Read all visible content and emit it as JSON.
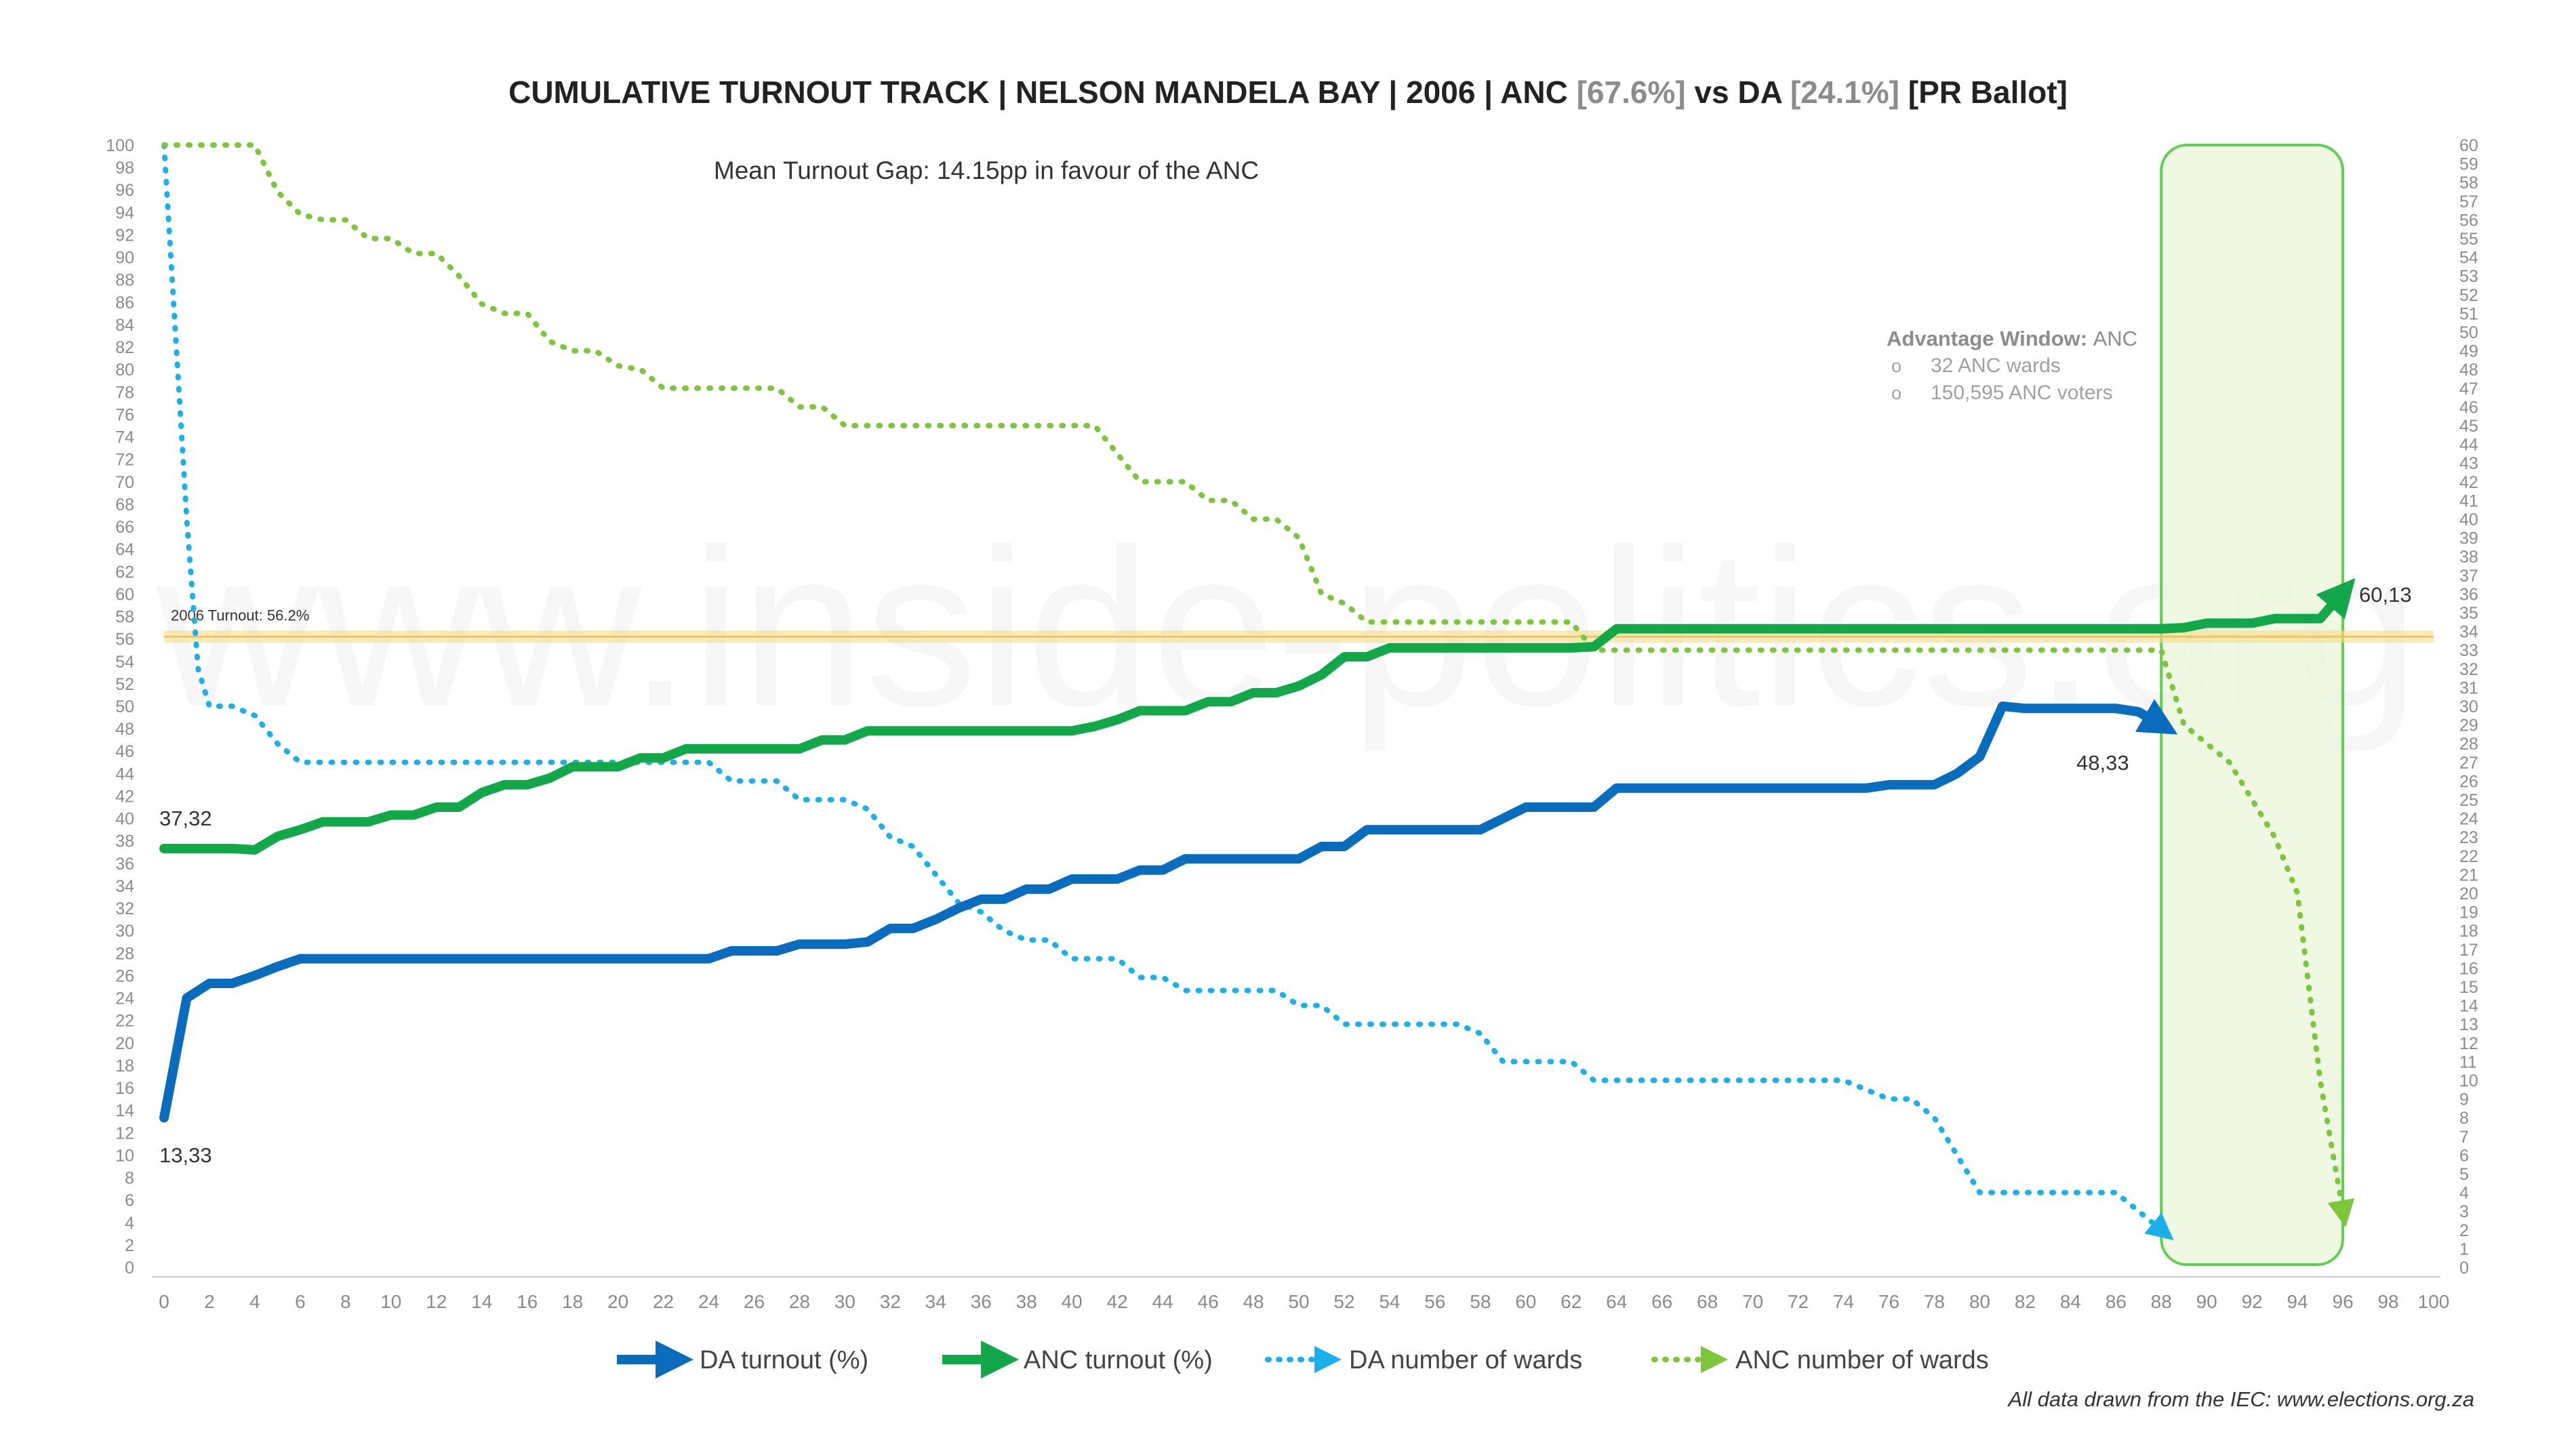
{
  "chart_data": {
    "type": "line",
    "title_parts": [
      {
        "text": "CUMULATIVE TURNOUT TRACK | NELSON MANDELA BAY | 2006 | ANC ",
        "color": "#222222"
      },
      {
        "text": "[67.6%]",
        "color": "#8c8c8c"
      },
      {
        "text": " vs DA ",
        "color": "#222222"
      },
      {
        "text": "[24.1%]",
        "color": "#8c8c8c"
      },
      {
        "text": " [PR Ballot]",
        "color": "#222222"
      }
    ],
    "subtitle": "Mean Turnout Gap: 14.15pp in favour of the ANC",
    "footer": "All data drawn from the IEC: www.elections.org.za",
    "watermark": "www.inside-politics.org",
    "xlim": [
      0,
      100
    ],
    "ylim_left": [
      0,
      100
    ],
    "ylim_right": [
      0,
      60
    ],
    "x_ticks": [
      0,
      2,
      4,
      6,
      8,
      10,
      12,
      14,
      16,
      18,
      20,
      22,
      24,
      26,
      28,
      30,
      32,
      34,
      36,
      38,
      40,
      42,
      44,
      46,
      48,
      50,
      52,
      54,
      56,
      58,
      60,
      62,
      64,
      66,
      68,
      70,
      72,
      74,
      76,
      78,
      80,
      82,
      84,
      86,
      88,
      90,
      92,
      94,
      96,
      98,
      100
    ],
    "y_left_ticks": [
      0,
      2,
      4,
      6,
      8,
      10,
      12,
      14,
      16,
      18,
      20,
      22,
      24,
      26,
      28,
      30,
      32,
      34,
      36,
      38,
      40,
      42,
      44,
      46,
      48,
      50,
      52,
      54,
      56,
      58,
      60,
      62,
      64,
      66,
      68,
      70,
      72,
      74,
      76,
      78,
      80,
      82,
      84,
      86,
      88,
      90,
      92,
      94,
      96,
      98,
      100
    ],
    "y_right_ticks": [
      0,
      1,
      2,
      3,
      4,
      5,
      6,
      7,
      8,
      9,
      10,
      11,
      12,
      13,
      14,
      15,
      16,
      17,
      18,
      19,
      20,
      21,
      22,
      23,
      24,
      25,
      26,
      27,
      28,
      29,
      30,
      31,
      32,
      33,
      34,
      35,
      36,
      37,
      38,
      39,
      40,
      41,
      42,
      43,
      44,
      45,
      46,
      47,
      48,
      49,
      50,
      51,
      52,
      53,
      54,
      55,
      56,
      57,
      58,
      59,
      60
    ],
    "reference_line": {
      "value": 56.2,
      "label": "2006 Turnout: 56.2%",
      "color": "#f5dc8c"
    },
    "advantage_window": {
      "x_start": 88,
      "x_end": 96,
      "title_label": "Advantage Window: ",
      "title_value": "ANC",
      "items": [
        "32 ANC wards",
        "150,595 ANC voters"
      ],
      "bullet": "o"
    },
    "series": [
      {
        "name": "DA turnout (%)",
        "axis": "left",
        "style": "solid",
        "color": "#0a6cbd",
        "points": [
          [
            0,
            13.33
          ],
          [
            1,
            24
          ],
          [
            2,
            25.3
          ],
          [
            3,
            25.3
          ],
          [
            4,
            26
          ],
          [
            5,
            26.8
          ],
          [
            6,
            27.5
          ],
          [
            23,
            27.5
          ],
          [
            24,
            27.5
          ],
          [
            25,
            28.2
          ],
          [
            27,
            28.2
          ],
          [
            28,
            28.8
          ],
          [
            30,
            28.8
          ],
          [
            31,
            29
          ],
          [
            32,
            30.2
          ],
          [
            33,
            30.2
          ],
          [
            34,
            31
          ],
          [
            35,
            32
          ],
          [
            36,
            32.8
          ],
          [
            37,
            32.8
          ],
          [
            38,
            33.7
          ],
          [
            39,
            33.7
          ],
          [
            40,
            34.6
          ],
          [
            42,
            34.6
          ],
          [
            43,
            35.4
          ],
          [
            44,
            35.4
          ],
          [
            45,
            36.4
          ],
          [
            50,
            36.4
          ],
          [
            51,
            37.5
          ],
          [
            52,
            37.5
          ],
          [
            53,
            39
          ],
          [
            58,
            39
          ],
          [
            59,
            40
          ],
          [
            60,
            41
          ],
          [
            62,
            41
          ],
          [
            63,
            41
          ],
          [
            64,
            42.7
          ],
          [
            75,
            42.7
          ],
          [
            76,
            43
          ],
          [
            78,
            43
          ],
          [
            79,
            44
          ],
          [
            80,
            45.5
          ],
          [
            81,
            50
          ],
          [
            82,
            49.8
          ],
          [
            86,
            49.8
          ],
          [
            87,
            49.5
          ],
          [
            88,
            48.33
          ]
        ],
        "end_label": "48,33",
        "start_label": "13,33"
      },
      {
        "name": "ANC turnout (%)",
        "axis": "left",
        "style": "solid",
        "color": "#12a84a",
        "points": [
          [
            0,
            37.32
          ],
          [
            3,
            37.32
          ],
          [
            4,
            37.2
          ],
          [
            5,
            38.4
          ],
          [
            6,
            39
          ],
          [
            7,
            39.7
          ],
          [
            9,
            39.7
          ],
          [
            10,
            40.3
          ],
          [
            11,
            40.3
          ],
          [
            12,
            41
          ],
          [
            13,
            41
          ],
          [
            14,
            42.3
          ],
          [
            15,
            43
          ],
          [
            16,
            43
          ],
          [
            17,
            43.6
          ],
          [
            18,
            44.6
          ],
          [
            20,
            44.6
          ],
          [
            21,
            45.4
          ],
          [
            22,
            45.4
          ],
          [
            23,
            46.2
          ],
          [
            28,
            46.2
          ],
          [
            29,
            47
          ],
          [
            30,
            47
          ],
          [
            31,
            47.8
          ],
          [
            40,
            47.8
          ],
          [
            41,
            48.2
          ],
          [
            42,
            48.8
          ],
          [
            43,
            49.6
          ],
          [
            45,
            49.6
          ],
          [
            46,
            50.4
          ],
          [
            47,
            50.4
          ],
          [
            48,
            51.2
          ],
          [
            49,
            51.2
          ],
          [
            50,
            51.8
          ],
          [
            51,
            52.8
          ],
          [
            52,
            54.4
          ],
          [
            53,
            54.4
          ],
          [
            54,
            55.2
          ],
          [
            62,
            55.2
          ],
          [
            63,
            55.3
          ],
          [
            64,
            56.9
          ],
          [
            88,
            56.9
          ],
          [
            89,
            57
          ],
          [
            90,
            57.4
          ],
          [
            92,
            57.4
          ],
          [
            93,
            57.8
          ],
          [
            95,
            57.8
          ],
          [
            96,
            60.13
          ]
        ],
        "end_label": "60,13",
        "start_label": "37,32"
      },
      {
        "name": "DA number of wards",
        "axis": "right",
        "style": "dotted",
        "color": "#1cb0ea",
        "points": [
          [
            0,
            60
          ],
          [
            0.5,
            50
          ],
          [
            1,
            40
          ],
          [
            1.5,
            32
          ],
          [
            2,
            30
          ],
          [
            3,
            30
          ],
          [
            4,
            29.5
          ],
          [
            5,
            28
          ],
          [
            6,
            27
          ],
          [
            24,
            27
          ],
          [
            25,
            26
          ],
          [
            27,
            26
          ],
          [
            28,
            25
          ],
          [
            30,
            25
          ],
          [
            31,
            24.5
          ],
          [
            32,
            23
          ],
          [
            33,
            22.5
          ],
          [
            34,
            21
          ],
          [
            35,
            19.5
          ],
          [
            36,
            19
          ],
          [
            37,
            18
          ],
          [
            38,
            17.5
          ],
          [
            39,
            17.5
          ],
          [
            40,
            16.5
          ],
          [
            42,
            16.5
          ],
          [
            43,
            15.5
          ],
          [
            44,
            15.5
          ],
          [
            45,
            14.8
          ],
          [
            49,
            14.8
          ],
          [
            50,
            14
          ],
          [
            51,
            14
          ],
          [
            52,
            13
          ],
          [
            57,
            13
          ],
          [
            58,
            12.5
          ],
          [
            59,
            11
          ],
          [
            62,
            11
          ],
          [
            63,
            10
          ],
          [
            74,
            10
          ],
          [
            75,
            9.5
          ],
          [
            76,
            9
          ],
          [
            77,
            9
          ],
          [
            78,
            8
          ],
          [
            79,
            6
          ],
          [
            80,
            4
          ],
          [
            86,
            4
          ],
          [
            87,
            3
          ],
          [
            88,
            2
          ]
        ]
      },
      {
        "name": "ANC number of wards",
        "axis": "right",
        "style": "dotted",
        "color": "#7cc63b",
        "points": [
          [
            0,
            60
          ],
          [
            4,
            60
          ],
          [
            5,
            57.5
          ],
          [
            6,
            56.3
          ],
          [
            7,
            56
          ],
          [
            8,
            56
          ],
          [
            9,
            55
          ],
          [
            10,
            55
          ],
          [
            11,
            54.2
          ],
          [
            12,
            54.2
          ],
          [
            13,
            53
          ],
          [
            14,
            51.5
          ],
          [
            15,
            51
          ],
          [
            16,
            51
          ],
          [
            17,
            49.5
          ],
          [
            18,
            49
          ],
          [
            19,
            49
          ],
          [
            20,
            48.2
          ],
          [
            21,
            48
          ],
          [
            22,
            47
          ],
          [
            27,
            47
          ],
          [
            28,
            46
          ],
          [
            29,
            46
          ],
          [
            30,
            45
          ],
          [
            41,
            45
          ],
          [
            42,
            43.5
          ],
          [
            43,
            42
          ],
          [
            45,
            42
          ],
          [
            46,
            41
          ],
          [
            47,
            41
          ],
          [
            48,
            40
          ],
          [
            49,
            40
          ],
          [
            50,
            39
          ],
          [
            51,
            36
          ],
          [
            52,
            35.5
          ],
          [
            53,
            34.5
          ],
          [
            62,
            34.5
          ],
          [
            63,
            33
          ],
          [
            88,
            33
          ],
          [
            89,
            29
          ],
          [
            90,
            28
          ],
          [
            91,
            27
          ],
          [
            92,
            25
          ],
          [
            93,
            23
          ],
          [
            94,
            20
          ],
          [
            95,
            10
          ],
          [
            96,
            3
          ]
        ]
      }
    ]
  }
}
